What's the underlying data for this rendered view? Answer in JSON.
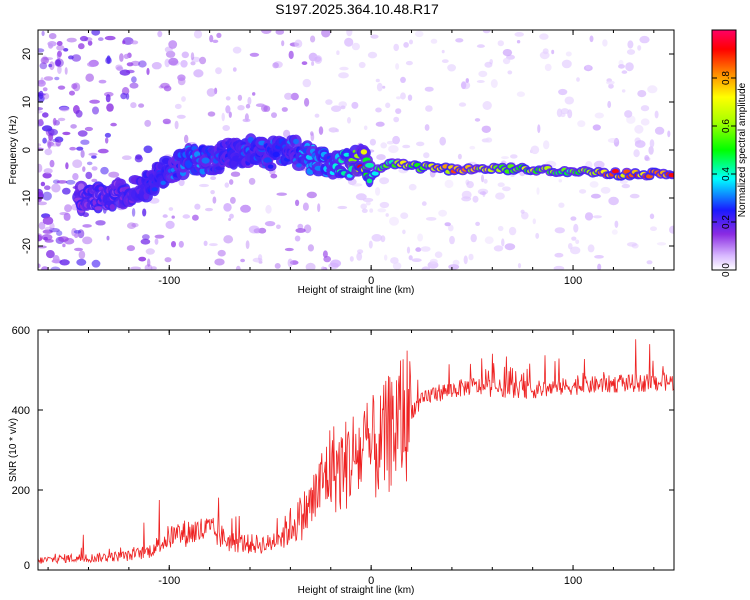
{
  "title": "S197.2025.364.10.48.R17",
  "chart_data": [
    {
      "type": "heatmap",
      "name": "spectrogram",
      "xlabel": "Height of straight line (km)",
      "ylabel": "Frequency (Hz)",
      "xlim": [
        -165,
        150
      ],
      "ylim": [
        -25,
        25
      ],
      "xticks": [
        -100,
        0,
        100
      ],
      "xtick_labels": [
        "-100",
        "0",
        "100"
      ],
      "yticks": [
        -20,
        -10,
        0,
        10,
        20
      ],
      "ytick_labels": [
        "-20",
        "-10",
        "0",
        "10",
        "20"
      ],
      "colorbar": {
        "label": "Normalized spectral amplitude",
        "range": [
          0,
          1
        ],
        "ticks": [
          0.0,
          0.2,
          0.4,
          0.6,
          0.8
        ],
        "tick_labels": [
          "0.0",
          "0.2",
          "0.4",
          "0.6",
          "0.8"
        ]
      },
      "ridge": {
        "x": [
          -140,
          -130,
          -120,
          -110,
          -100,
          -90,
          -80,
          -70,
          -60,
          -50,
          -40,
          -30,
          -20,
          -10,
          -5,
          0,
          5,
          10,
          15,
          20,
          40,
          60,
          80,
          100,
          120,
          150
        ],
        "freq": [
          -10,
          -9.5,
          -9,
          -7,
          -4,
          -2,
          -2,
          -1,
          0,
          -1,
          0,
          -2,
          -3,
          -3,
          -2,
          -5,
          -4,
          -3,
          -3,
          -3.5,
          -4,
          -4,
          -4,
          -4.5,
          -5,
          -5
        ],
        "amplitude": [
          0.15,
          0.15,
          0.2,
          0.25,
          0.3,
          0.35,
          0.3,
          0.25,
          0.3,
          0.3,
          0.3,
          0.35,
          0.35,
          0.5,
          0.95,
          0.4,
          0.6,
          0.5,
          0.95,
          0.6,
          0.85,
          0.7,
          0.65,
          0.55,
          0.9,
          0.9
        ]
      }
    },
    {
      "type": "line",
      "name": "snr",
      "xlabel": "Height of straight line (km)",
      "ylabel": "SNR (10 * v/v)",
      "xlim": [
        -165,
        150
      ],
      "ylim": [
        0,
        600
      ],
      "xticks": [
        -100,
        0,
        100
      ],
      "xtick_labels": [
        "-100",
        "0",
        "100"
      ],
      "yticks": [
        0,
        200,
        400,
        600
      ],
      "ytick_labels": [
        "0",
        "200",
        "400",
        "600"
      ],
      "series": [
        {
          "name": "SNR",
          "color": "#ee2222",
          "x": [
            -165,
            -150,
            -140,
            -130,
            -120,
            -110,
            -100,
            -90,
            -80,
            -70,
            -60,
            -50,
            -45,
            -40,
            -35,
            -30,
            -25,
            -20,
            -15,
            -10,
            -5,
            0,
            5,
            10,
            15,
            20,
            25,
            30,
            40,
            50,
            60,
            80,
            100,
            120,
            150
          ],
          "y": [
            20,
            25,
            25,
            28,
            30,
            40,
            70,
            80,
            85,
            60,
            55,
            55,
            80,
            110,
            130,
            160,
            210,
            260,
            250,
            280,
            290,
            300,
            310,
            350,
            380,
            400,
            420,
            440,
            450,
            460,
            455,
            450,
            460,
            465,
            470
          ]
        }
      ]
    }
  ]
}
